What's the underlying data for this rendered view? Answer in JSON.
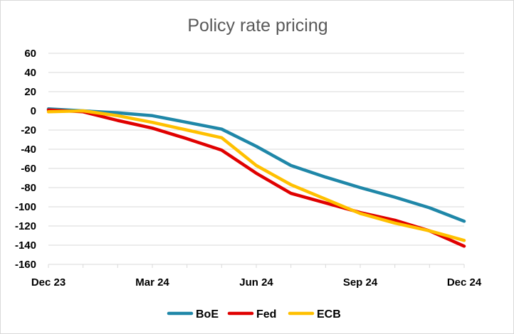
{
  "chart_data": {
    "type": "line",
    "title": "Policy rate pricing",
    "xlabel": "",
    "ylabel": "",
    "ylim": [
      -160,
      60
    ],
    "yticks": [
      60,
      40,
      20,
      0,
      -20,
      -40,
      -60,
      -80,
      -100,
      -120,
      -140,
      -160
    ],
    "x_tick_labels": [
      "Dec 23",
      "Mar 24",
      "Jun 24",
      "Sep 24",
      "Dec 24"
    ],
    "x": [
      "Dec 23",
      "Jan 24",
      "Feb 24",
      "Mar 24",
      "Apr 24",
      "May 24",
      "Jun 24",
      "Jul 24",
      "Aug 24",
      "Sep 24",
      "Oct 24",
      "Nov 24",
      "Dec 24"
    ],
    "grid": "horizontal",
    "legend_position": "bottom",
    "series": [
      {
        "name": "BoE",
        "color": "#1f87a8",
        "values": [
          2,
          0,
          -2,
          -5,
          -12,
          -19,
          -37,
          -57,
          -69,
          -80,
          -90,
          -101,
          -115
        ]
      },
      {
        "name": "Fed",
        "color": "#e00000",
        "values": [
          1,
          -1,
          -10,
          -18,
          -29,
          -41,
          -65,
          -86,
          -96,
          -106,
          -114,
          -125,
          -141
        ]
      },
      {
        "name": "ECB",
        "color": "#ffc000",
        "values": [
          -1,
          0,
          -5,
          -12,
          -20,
          -28,
          -57,
          -77,
          -92,
          -107,
          -117,
          -125,
          -135
        ]
      }
    ]
  }
}
